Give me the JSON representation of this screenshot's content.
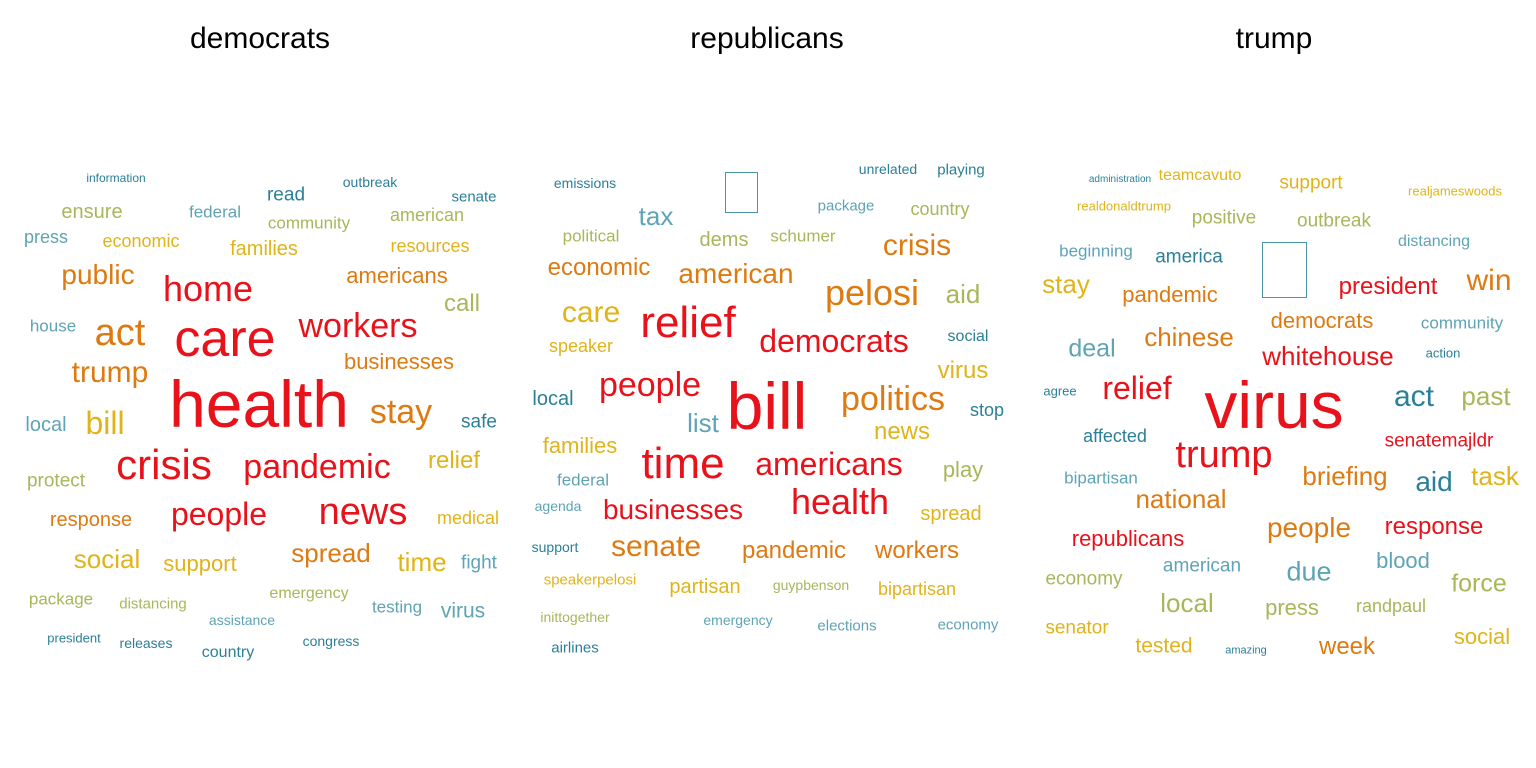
{
  "palette": {
    "c1": "#e8121b",
    "c2": "#dd7a12",
    "c3": "#e0b419",
    "c4": "#a9b65a",
    "c5": "#5ea3b6",
    "c6": "#2b7f98"
  },
  "panels": [
    {
      "title": "democrats",
      "words": [
        {
          "text": "health",
          "color": "c1"
        },
        {
          "text": "care",
          "color": "c1"
        },
        {
          "text": "crisis",
          "color": "c1"
        },
        {
          "text": "home",
          "color": "c1"
        },
        {
          "text": "workers",
          "color": "c1"
        },
        {
          "text": "pandemic",
          "color": "c1"
        },
        {
          "text": "news",
          "color": "c1"
        },
        {
          "text": "people",
          "color": "c1"
        },
        {
          "text": "act",
          "color": "c2"
        },
        {
          "text": "trump",
          "color": "c2"
        },
        {
          "text": "public",
          "color": "c2"
        },
        {
          "text": "stay",
          "color": "c2"
        },
        {
          "text": "americans",
          "color": "c2"
        },
        {
          "text": "businesses",
          "color": "c2"
        },
        {
          "text": "spread",
          "color": "c2"
        },
        {
          "text": "response",
          "color": "c2"
        },
        {
          "text": "bill",
          "color": "c3"
        },
        {
          "text": "social",
          "color": "c3"
        },
        {
          "text": "time",
          "color": "c3"
        },
        {
          "text": "support",
          "color": "c3"
        },
        {
          "text": "relief",
          "color": "c3"
        },
        {
          "text": "families",
          "color": "c3"
        },
        {
          "text": "economic",
          "color": "c3"
        },
        {
          "text": "resources",
          "color": "c3"
        },
        {
          "text": "medical",
          "color": "c3"
        },
        {
          "text": "call",
          "color": "c4"
        },
        {
          "text": "ensure",
          "color": "c4"
        },
        {
          "text": "community",
          "color": "c4"
        },
        {
          "text": "american",
          "color": "c4"
        },
        {
          "text": "protect",
          "color": "c4"
        },
        {
          "text": "package",
          "color": "c4"
        },
        {
          "text": "distancing",
          "color": "c4"
        },
        {
          "text": "emergency",
          "color": "c4"
        },
        {
          "text": "federal",
          "color": "c5"
        },
        {
          "text": "press",
          "color": "c5"
        },
        {
          "text": "house",
          "color": "c5"
        },
        {
          "text": "local",
          "color": "c5"
        },
        {
          "text": "fight",
          "color": "c5"
        },
        {
          "text": "testing",
          "color": "c5"
        },
        {
          "text": "virus",
          "color": "c5"
        },
        {
          "text": "assistance",
          "color": "c5"
        },
        {
          "text": "safe",
          "color": "c6"
        },
        {
          "text": "read",
          "color": "c6"
        },
        {
          "text": "outbreak",
          "color": "c6"
        },
        {
          "text": "senate",
          "color": "c6"
        },
        {
          "text": "information",
          "color": "c6"
        },
        {
          "text": "president",
          "color": "c6"
        },
        {
          "text": "releases",
          "color": "c6"
        },
        {
          "text": "country",
          "color": "c6"
        },
        {
          "text": "congress",
          "color": "c6"
        }
      ]
    },
    {
      "title": "republicans",
      "words": [
        {
          "text": "bill",
          "color": "c1"
        },
        {
          "text": "relief",
          "color": "c1"
        },
        {
          "text": "time",
          "color": "c1"
        },
        {
          "text": "people",
          "color": "c1"
        },
        {
          "text": "democrats",
          "color": "c1"
        },
        {
          "text": "americans",
          "color": "c1"
        },
        {
          "text": "health",
          "color": "c1"
        },
        {
          "text": "businesses",
          "color": "c1"
        },
        {
          "text": "pelosi",
          "color": "c2"
        },
        {
          "text": "american",
          "color": "c2"
        },
        {
          "text": "crisis",
          "color": "c2"
        },
        {
          "text": "economic",
          "color": "c2"
        },
        {
          "text": "politics",
          "color": "c2"
        },
        {
          "text": "senate",
          "color": "c2"
        },
        {
          "text": "pandemic",
          "color": "c2"
        },
        {
          "text": "workers",
          "color": "c2"
        },
        {
          "text": "care",
          "color": "c3"
        },
        {
          "text": "families",
          "color": "c3"
        },
        {
          "text": "virus",
          "color": "c3"
        },
        {
          "text": "news",
          "color": "c3"
        },
        {
          "text": "speaker",
          "color": "c3"
        },
        {
          "text": "spread",
          "color": "c3"
        },
        {
          "text": "partisan",
          "color": "c3"
        },
        {
          "text": "bipartisan",
          "color": "c3"
        },
        {
          "text": "speakerpelosi",
          "color": "c3"
        },
        {
          "text": "aid",
          "color": "c4"
        },
        {
          "text": "play",
          "color": "c4"
        },
        {
          "text": "dems",
          "color": "c4"
        },
        {
          "text": "schumer",
          "color": "c4"
        },
        {
          "text": "country",
          "color": "c4"
        },
        {
          "text": "political",
          "color": "c4"
        },
        {
          "text": "guypbenson",
          "color": "c4"
        },
        {
          "text": "inittogether",
          "color": "c4"
        },
        {
          "text": "tax",
          "color": "c5"
        },
        {
          "text": "list",
          "color": "c5"
        },
        {
          "text": "package",
          "color": "c5"
        },
        {
          "text": "federal",
          "color": "c5"
        },
        {
          "text": "agenda",
          "color": "c5"
        },
        {
          "text": "emergency",
          "color": "c5"
        },
        {
          "text": "elections",
          "color": "c5"
        },
        {
          "text": "economy",
          "color": "c5"
        },
        {
          "text": "local",
          "color": "c6"
        },
        {
          "text": "stop",
          "color": "c6"
        },
        {
          "text": "social",
          "color": "c6"
        },
        {
          "text": "emissions",
          "color": "c6"
        },
        {
          "text": "unrelated",
          "color": "c6"
        },
        {
          "text": "playing",
          "color": "c6"
        },
        {
          "text": "support",
          "color": "c6"
        },
        {
          "text": "airlines",
          "color": "c6"
        }
      ]
    },
    {
      "title": "trump",
      "words": [
        {
          "text": "virus",
          "color": "c1"
        },
        {
          "text": "trump",
          "color": "c1"
        },
        {
          "text": "relief",
          "color": "c1"
        },
        {
          "text": "whitehouse",
          "color": "c1"
        },
        {
          "text": "president",
          "color": "c1"
        },
        {
          "text": "senatemajldr",
          "color": "c1"
        },
        {
          "text": "response",
          "color": "c1"
        },
        {
          "text": "republicans",
          "color": "c1"
        },
        {
          "text": "win",
          "color": "c2"
        },
        {
          "text": "chinese",
          "color": "c2"
        },
        {
          "text": "democrats",
          "color": "c2"
        },
        {
          "text": "pandemic",
          "color": "c2"
        },
        {
          "text": "briefing",
          "color": "c2"
        },
        {
          "text": "national",
          "color": "c2"
        },
        {
          "text": "people",
          "color": "c2"
        },
        {
          "text": "week",
          "color": "c2"
        },
        {
          "text": "stay",
          "color": "c3"
        },
        {
          "text": "task",
          "color": "c3"
        },
        {
          "text": "teamcavuto",
          "color": "c3"
        },
        {
          "text": "support",
          "color": "c3"
        },
        {
          "text": "realjameswoods",
          "color": "c3"
        },
        {
          "text": "realdonaldtrump",
          "color": "c3"
        },
        {
          "text": "senator",
          "color": "c3"
        },
        {
          "text": "tested",
          "color": "c3"
        },
        {
          "text": "social",
          "color": "c3"
        },
        {
          "text": "past",
          "color": "c4"
        },
        {
          "text": "local",
          "color": "c4"
        },
        {
          "text": "press",
          "color": "c4"
        },
        {
          "text": "force",
          "color": "c4"
        },
        {
          "text": "positive",
          "color": "c4"
        },
        {
          "text": "outbreak",
          "color": "c4"
        },
        {
          "text": "economy",
          "color": "c4"
        },
        {
          "text": "randpaul",
          "color": "c4"
        },
        {
          "text": "deal",
          "color": "c5"
        },
        {
          "text": "due",
          "color": "c5"
        },
        {
          "text": "blood",
          "color": "c5"
        },
        {
          "text": "community",
          "color": "c5"
        },
        {
          "text": "distancing",
          "color": "c5"
        },
        {
          "text": "beginning",
          "color": "c5"
        },
        {
          "text": "bipartisan",
          "color": "c5"
        },
        {
          "text": "american",
          "color": "c5"
        },
        {
          "text": "act",
          "color": "c6"
        },
        {
          "text": "aid",
          "color": "c6"
        },
        {
          "text": "america",
          "color": "c6"
        },
        {
          "text": "affected",
          "color": "c6"
        },
        {
          "text": "action",
          "color": "c6"
        },
        {
          "text": "agree",
          "color": "c6"
        },
        {
          "text": "administration",
          "color": "c6"
        },
        {
          "text": "amazing",
          "color": "c6"
        }
      ]
    }
  ]
}
